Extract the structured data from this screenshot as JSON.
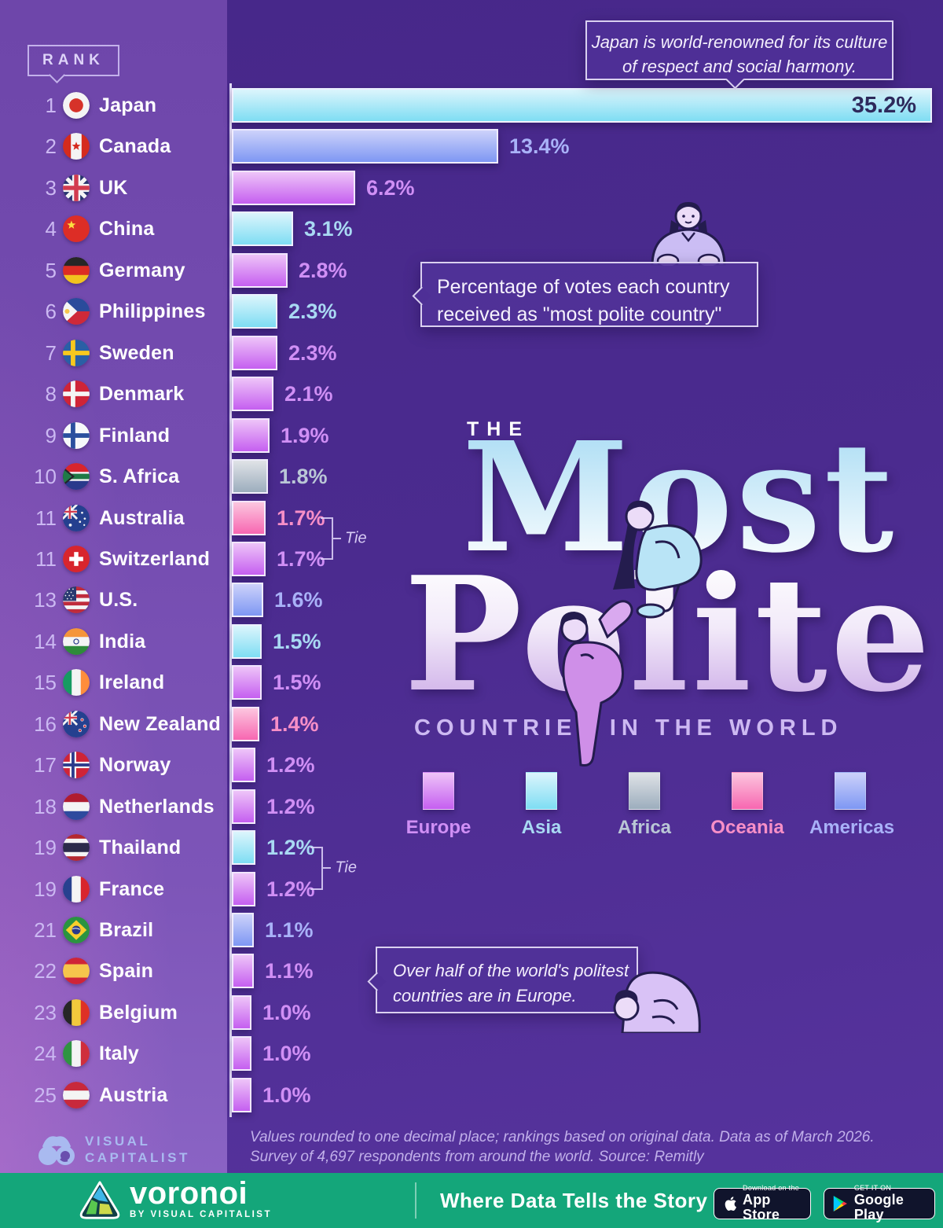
{
  "sidebar": {
    "rank_label": "RANK"
  },
  "title": {
    "kicker": "THE",
    "word1": "Most",
    "word2": "Polite",
    "subtitle": "COUNTRIES IN THE WORLD"
  },
  "callouts": {
    "japan_note": "Japan is world-renowned for its culture of respect and social harmony.",
    "axis_note_line1": "Percentage of votes each country",
    "axis_note_line2": "received as \"most polite country\"",
    "europe_note_line1": "Over half of the world's politest",
    "europe_note_line2": "countries are in Europe."
  },
  "chart_data": {
    "type": "bar",
    "orientation": "horizontal",
    "title": "The Most Polite Countries in the World",
    "subtitle": "Percentage of votes each country received as \"most polite country\"",
    "value_unit": "%",
    "x_max": 35.2,
    "legend_position": "bottom-center",
    "rows": [
      {
        "rank": 1,
        "country": "Japan",
        "value": 35.2,
        "continent": "Asia",
        "flag": "flag-japan",
        "value_label_inside": true
      },
      {
        "rank": 2,
        "country": "Canada",
        "value": 13.4,
        "continent": "Americas",
        "flag": "flag-canada"
      },
      {
        "rank": 3,
        "country": "UK",
        "value": 6.2,
        "continent": "Europe",
        "flag": "flag-uk"
      },
      {
        "rank": 4,
        "country": "China",
        "value": 3.1,
        "continent": "Asia",
        "flag": "flag-china"
      },
      {
        "rank": 5,
        "country": "Germany",
        "value": 2.8,
        "continent": "Europe",
        "flag": "flag-germany"
      },
      {
        "rank": 6,
        "country": "Philippines",
        "value": 2.3,
        "continent": "Asia",
        "flag": "flag-philippines"
      },
      {
        "rank": 7,
        "country": "Sweden",
        "value": 2.3,
        "continent": "Europe",
        "flag": "flag-sweden"
      },
      {
        "rank": 8,
        "country": "Denmark",
        "value": 2.1,
        "continent": "Europe",
        "flag": "flag-denmark"
      },
      {
        "rank": 9,
        "country": "Finland",
        "value": 1.9,
        "continent": "Europe",
        "flag": "flag-finland"
      },
      {
        "rank": 10,
        "country": "S. Africa",
        "value": 1.8,
        "continent": "Africa",
        "flag": "flag-south-africa"
      },
      {
        "rank": 11,
        "country": "Australia",
        "value": 1.7,
        "continent": "Oceania",
        "flag": "flag-australia"
      },
      {
        "rank": 11,
        "country": "Switzerland",
        "value": 1.7,
        "continent": "Europe",
        "flag": "flag-switzerland"
      },
      {
        "rank": 13,
        "country": "U.S.",
        "value": 1.6,
        "continent": "Americas",
        "flag": "flag-us"
      },
      {
        "rank": 14,
        "country": "India",
        "value": 1.5,
        "continent": "Asia",
        "flag": "flag-india"
      },
      {
        "rank": 15,
        "country": "Ireland",
        "value": 1.5,
        "continent": "Europe",
        "flag": "flag-ireland"
      },
      {
        "rank": 16,
        "country": "New Zealand",
        "value": 1.4,
        "continent": "Oceania",
        "flag": "flag-new-zealand"
      },
      {
        "rank": 17,
        "country": "Norway",
        "value": 1.2,
        "continent": "Europe",
        "flag": "flag-norway"
      },
      {
        "rank": 18,
        "country": "Netherlands",
        "value": 1.2,
        "continent": "Europe",
        "flag": "flag-netherlands"
      },
      {
        "rank": 19,
        "country": "Thailand",
        "value": 1.2,
        "continent": "Asia",
        "flag": "flag-thailand"
      },
      {
        "rank": 19,
        "country": "France",
        "value": 1.2,
        "continent": "Europe",
        "flag": "flag-france"
      },
      {
        "rank": 21,
        "country": "Brazil",
        "value": 1.1,
        "continent": "Americas",
        "flag": "flag-brazil"
      },
      {
        "rank": 22,
        "country": "Spain",
        "value": 1.1,
        "continent": "Europe",
        "flag": "flag-spain"
      },
      {
        "rank": 23,
        "country": "Belgium",
        "value": 1.0,
        "continent": "Europe",
        "flag": "flag-belgium"
      },
      {
        "rank": 24,
        "country": "Italy",
        "value": 1.0,
        "continent": "Europe",
        "flag": "flag-italy"
      },
      {
        "rank": 25,
        "country": "Austria",
        "value": 1.0,
        "continent": "Europe",
        "flag": "flag-austria"
      }
    ],
    "ties": [
      {
        "between": [
          "Australia",
          "Switzerland"
        ],
        "label": "Tie"
      },
      {
        "between": [
          "Thailand",
          "France"
        ],
        "label": "Tie"
      }
    ]
  },
  "legend": [
    {
      "label": "Europe"
    },
    {
      "label": "Asia"
    },
    {
      "label": "Africa"
    },
    {
      "label": "Oceania"
    },
    {
      "label": "Americas"
    }
  ],
  "continent_colors": {
    "Europe": {
      "top": "#eec4f8",
      "bottom": "#c55ff0",
      "text": "#d08ff5"
    },
    "Asia": {
      "top": "#dcf5fc",
      "bottom": "#7eddf3",
      "text": "#a9d9f3"
    },
    "Africa": {
      "top": "#e0e3e7",
      "bottom": "#9cadbd",
      "text": "#bac7d6"
    },
    "Oceania": {
      "top": "#fcc6df",
      "bottom": "#f767b1",
      "text": "#f78fc7"
    },
    "Americas": {
      "top": "#cdd2fa",
      "bottom": "#7e97f3",
      "text": "#a9b2f8"
    }
  },
  "value_inside_text_color": "#2e2a5c",
  "footnote": {
    "line1": "Values rounded to one decimal place; rankings based on original data. Data as of March 2026.",
    "line2": "Survey of 4,697 respondents from around the world. Source: Remitly"
  },
  "branding": {
    "visual_capitalist_line1": "VISUAL",
    "visual_capitalist_line2": "CAPITALIST"
  },
  "footer": {
    "brand": "voronoi",
    "byline": "BY VISUAL CAPITALIST",
    "tagline": "Where Data Tells the Story",
    "appstore_small": "Download on the",
    "appstore_big": "App Store",
    "googleplay_small": "GET IT ON",
    "googleplay_big": "Google Play",
    "background": "#14a67a"
  }
}
